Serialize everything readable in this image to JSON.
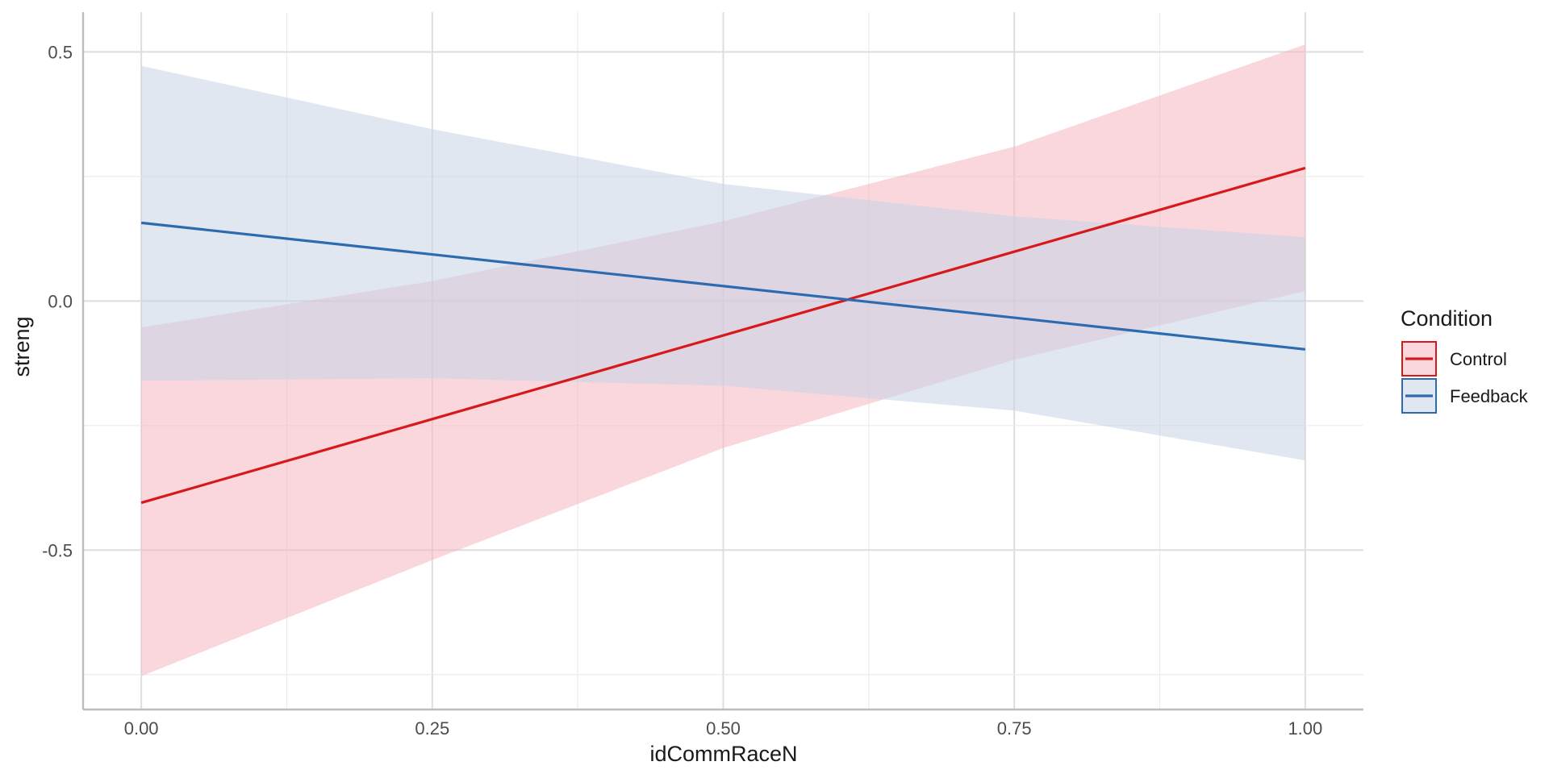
{
  "chart_data": {
    "type": "line",
    "xlabel": "idCommRaceN",
    "ylabel": "streng",
    "xlim": [
      -0.05,
      1.05
    ],
    "ylim": [
      -0.82,
      0.58
    ],
    "x_ticks": [
      0.0,
      0.25,
      0.5,
      0.75,
      1.0
    ],
    "x_tick_labels": [
      "0.00",
      "0.25",
      "0.50",
      "0.75",
      "1.00"
    ],
    "y_ticks": [
      -0.5,
      0.0,
      0.5
    ],
    "y_tick_labels": [
      "-0.5",
      "0.0",
      "0.5"
    ],
    "grid": true,
    "legend": {
      "title": "Condition",
      "position": "right"
    },
    "series": [
      {
        "name": "Control",
        "color": "#D7191C",
        "fill": "#F4B6BF",
        "x": [
          0.0,
          1.0
        ],
        "y": [
          -0.405,
          0.267
        ],
        "ribbon": {
          "x": [
            0.0,
            0.25,
            0.5,
            0.75,
            1.0
          ],
          "lower": [
            -0.753,
            -0.52,
            -0.295,
            -0.118,
            0.02
          ],
          "upper": [
            -0.053,
            0.04,
            0.16,
            0.31,
            0.515
          ]
        }
      },
      {
        "name": "Feedback",
        "color": "#2C6BB0",
        "fill": "#C6D3E6",
        "x": [
          0.0,
          1.0
        ],
        "y": [
          0.157,
          -0.097
        ],
        "ribbon": {
          "x": [
            0.0,
            0.25,
            0.5,
            0.75,
            1.0
          ],
          "lower": [
            -0.16,
            -0.155,
            -0.17,
            -0.22,
            -0.32
          ],
          "upper": [
            0.472,
            0.345,
            0.235,
            0.17,
            0.128
          ]
        }
      }
    ]
  }
}
